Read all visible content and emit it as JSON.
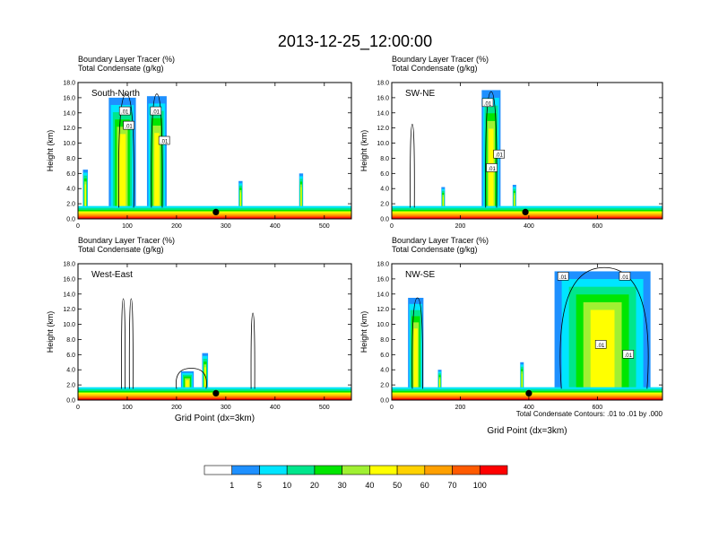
{
  "chart_data": {
    "type": "heatmap",
    "title": "2013-12-25_12:00:00",
    "colorbar": {
      "colors": [
        "#ffffff",
        "#1e90ff",
        "#00e5ff",
        "#00e68c",
        "#00e600",
        "#a0f032",
        "#ffff00",
        "#ffd200",
        "#ffa000",
        "#ff5a00",
        "#ff0000"
      ],
      "labels": [
        "1",
        "5",
        "10",
        "20",
        "30",
        "40",
        "50",
        "60",
        "70",
        "100"
      ]
    },
    "contour_note": "Total Condensate Contours: .01 to .01 by .000",
    "xlabel": "Grid Point (dx=3km)",
    "panels": [
      {
        "name": "South-North",
        "subtitle1": "Boundary Layer Tracer    (%)",
        "subtitle2": "Total Condensate    (g/kg)",
        "ylabel": "Height (km)",
        "xlim": [
          0,
          555
        ],
        "ylim": [
          0,
          18
        ],
        "xticks": [
          0,
          100,
          200,
          300,
          400,
          500
        ],
        "yticks": [
          "0.0",
          "2.0",
          "4.0",
          "6.0",
          "8.0",
          "10.0",
          "12.0",
          "14.0",
          "16.0",
          "18.0"
        ],
        "xlabel": "",
        "marker_x": 280,
        "contour_labels": [
          {
            "text": ".01",
            "x": 95,
            "y": 14.2
          },
          {
            "text": ".01",
            "x": 158,
            "y": 14.2
          },
          {
            "text": ".01",
            "x": 103,
            "y": 12.3
          },
          {
            "text": ".01",
            "x": 175,
            "y": 10.3
          }
        ],
        "plumes": [
          {
            "x": 15,
            "w": 10,
            "top": 6.5
          },
          {
            "x": 90,
            "w": 55,
            "top": 16.0
          },
          {
            "x": 160,
            "w": 40,
            "top": 16.2
          },
          {
            "x": 330,
            "w": 8,
            "top": 5.0
          },
          {
            "x": 453,
            "w": 8,
            "top": 6.0
          }
        ],
        "contours": [
          {
            "x": 98,
            "w": 30,
            "top": 16.5
          },
          {
            "x": 160,
            "w": 22,
            "top": 16.5
          }
        ]
      },
      {
        "name": "SW-NE",
        "subtitle1": "Boundary Layer Tracer    (%)",
        "subtitle2": "Total Condensate    (g/kg)",
        "ylabel": "Height (km)",
        "xlim": [
          0,
          790
        ],
        "ylim": [
          0,
          18
        ],
        "xticks": [
          0,
          200,
          400,
          600
        ],
        "yticks": [
          "0.0",
          "2.0",
          "4.0",
          "6.0",
          "8.0",
          "10.0",
          "12.0",
          "14.0",
          "16.0",
          "18.0"
        ],
        "xlabel": "",
        "marker_x": 390,
        "contour_labels": [
          {
            "text": ".01",
            "x": 280,
            "y": 15.3
          },
          {
            "text": ".01",
            "x": 313,
            "y": 8.5
          },
          {
            "text": ".01",
            "x": 292,
            "y": 6.7
          }
        ],
        "plumes": [
          {
            "x": 290,
            "w": 55,
            "top": 17.0
          },
          {
            "x": 150,
            "w": 6,
            "top": 4.2
          },
          {
            "x": 358,
            "w": 6,
            "top": 4.5
          }
        ],
        "contours": [
          {
            "x": 60,
            "w": 12,
            "top": 12.5
          },
          {
            "x": 290,
            "w": 32,
            "top": 16.8
          }
        ]
      },
      {
        "name": "West-East",
        "subtitle1": "Boundary Layer Tracer    (%)",
        "subtitle2": "Total Condensate    (g/kg)",
        "ylabel": "Height (km)",
        "xlim": [
          0,
          555
        ],
        "ylim": [
          0,
          18
        ],
        "xticks": [
          0,
          100,
          200,
          300,
          400,
          500
        ],
        "yticks": [
          "0.0",
          "2.0",
          "4.0",
          "6.0",
          "8.0",
          "10.0",
          "12.0",
          "14.0",
          "16.0",
          "18.0"
        ],
        "xlabel": "Grid Point (dx=3km)",
        "marker_x": 280,
        "contour_labels": [],
        "plumes": [
          {
            "x": 258,
            "w": 12,
            "top": 6.2
          },
          {
            "x": 222,
            "w": 26,
            "top": 3.8
          }
        ],
        "contours": [
          {
            "x": 92,
            "w": 6,
            "top": 13.4
          },
          {
            "x": 108,
            "w": 6,
            "top": 13.4
          },
          {
            "x": 355,
            "w": 4,
            "top": 11.5
          },
          {
            "x": 230,
            "w": 60,
            "top": 4.2
          }
        ]
      },
      {
        "name": "NW-SE",
        "subtitle1": "Boundary Layer Tracer    (%)",
        "subtitle2": "Total Condensate    (g/kg)",
        "ylabel": "Height (km)",
        "xlim": [
          0,
          790
        ],
        "ylim": [
          0,
          18
        ],
        "xticks": [
          0,
          200,
          400,
          600
        ],
        "yticks": [
          "0.0",
          "2.0",
          "4.0",
          "6.0",
          "8.0",
          "10.0",
          "12.0",
          "14.0",
          "16.0",
          "18.0"
        ],
        "xlabel": "",
        "marker_x": 400,
        "contour_labels": [
          {
            "text": ".01",
            "x": 500,
            "y": 16.3
          },
          {
            "text": ".01",
            "x": 680,
            "y": 16.3
          },
          {
            "text": ".01",
            "x": 610,
            "y": 7.3
          },
          {
            "text": ".01",
            "x": 690,
            "y": 6.0
          }
        ],
        "plumes": [
          {
            "x": 70,
            "w": 45,
            "top": 13.5
          },
          {
            "x": 615,
            "w": 280,
            "top": 17.0
          },
          {
            "x": 380,
            "w": 8,
            "top": 5.0
          },
          {
            "x": 140,
            "w": 8,
            "top": 4.0
          }
        ],
        "contours": [
          {
            "x": 75,
            "w": 30,
            "top": 13.5
          },
          {
            "x": 620,
            "w": 250,
            "top": 17.5
          }
        ]
      }
    ]
  }
}
